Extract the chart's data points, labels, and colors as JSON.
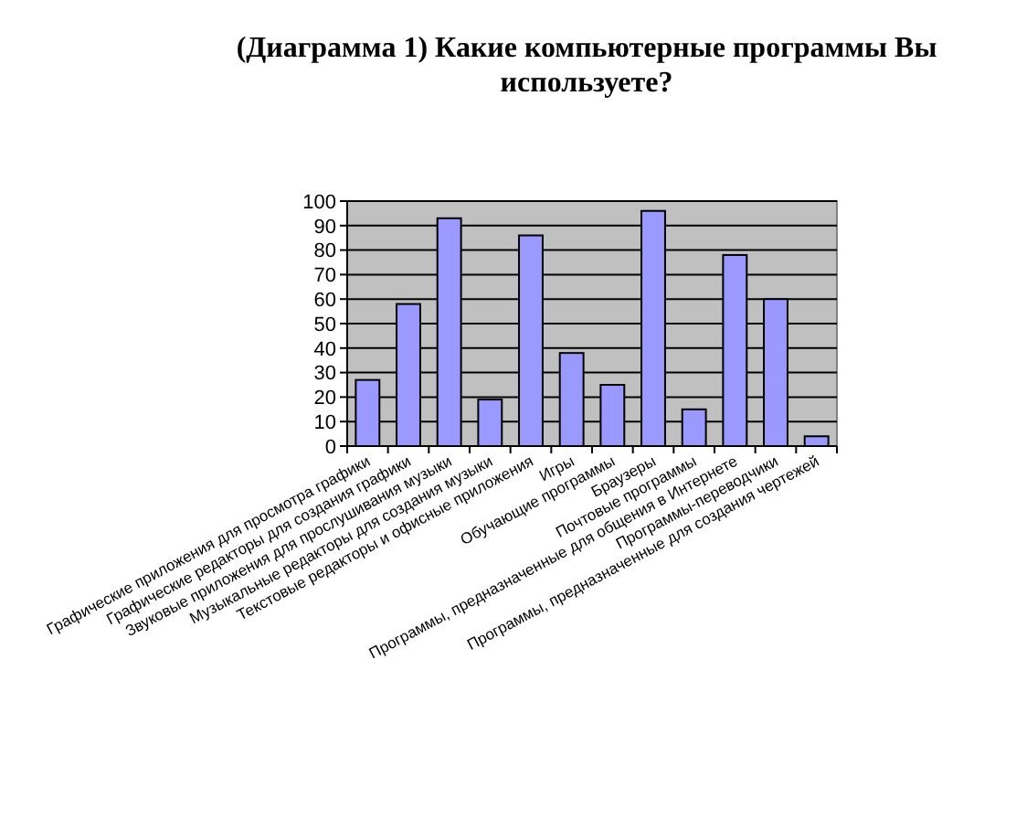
{
  "chart_data": {
    "type": "bar",
    "title": "(Диаграмма 1) Какие компьютерные программы Вы используете?",
    "categories": [
      "Графические приложения для просмотра графики",
      "Графические редакторы для создания графики",
      "Звуковые приложения для прослушивания музыки",
      "Музыкальные редакторы для создания музыки",
      "Текстовые редакторы и офисные приложения",
      "Игры",
      "Обучающие программы",
      "Браузеры",
      "Почтовые программы",
      "Программы, предназначенные для общения в Интернете",
      "Программы-переводчики",
      "Программы, предназначенные для создания чертежей"
    ],
    "values": [
      27,
      58,
      93,
      19,
      86,
      38,
      25,
      96,
      15,
      78,
      60,
      4
    ],
    "color": "#9999ff",
    "ylim": [
      0,
      100
    ],
    "yticks": [
      0,
      10,
      20,
      30,
      40,
      50,
      60,
      70,
      80,
      90,
      100
    ],
    "grid": "y"
  }
}
